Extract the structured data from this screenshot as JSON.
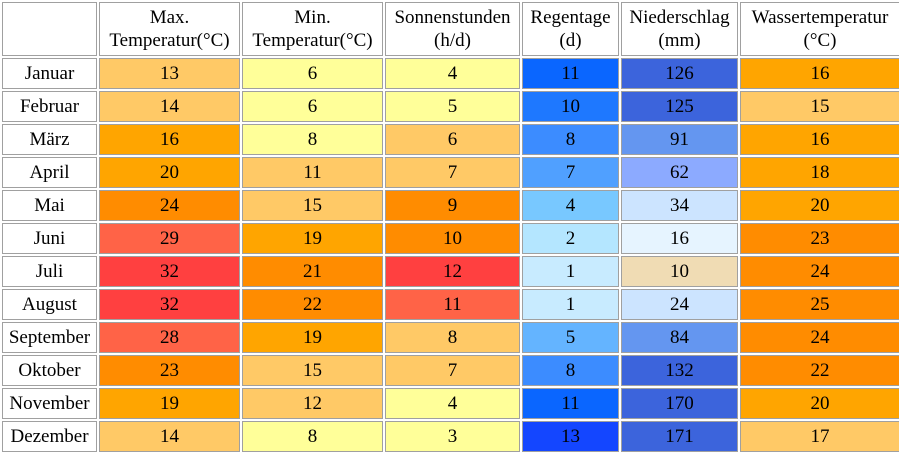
{
  "headers": [
    {
      "line1": "Max.",
      "line2": "Temperatur(°C)"
    },
    {
      "line1": "Min.",
      "line2": "Temperatur(°C)"
    },
    {
      "line1": "Sonnenstunden",
      "line2": "(h/d)"
    },
    {
      "line1": "Regentage",
      "line2": "(d)"
    },
    {
      "line1": "Niederschlag",
      "line2": "(mm)"
    },
    {
      "line1": "Wassertemperatur",
      "line2": "(°C)"
    }
  ],
  "rows": [
    {
      "month": "Januar",
      "values": [
        "13",
        "6",
        "4",
        "11",
        "126",
        "16"
      ]
    },
    {
      "month": "Februar",
      "values": [
        "14",
        "6",
        "5",
        "10",
        "125",
        "15"
      ]
    },
    {
      "month": "März",
      "values": [
        "16",
        "8",
        "6",
        "8",
        "91",
        "16"
      ]
    },
    {
      "month": "April",
      "values": [
        "20",
        "11",
        "7",
        "7",
        "62",
        "18"
      ]
    },
    {
      "month": "Mai",
      "values": [
        "24",
        "15",
        "9",
        "4",
        "34",
        "20"
      ]
    },
    {
      "month": "Juni",
      "values": [
        "29",
        "19",
        "10",
        "2",
        "16",
        "23"
      ]
    },
    {
      "month": "Juli",
      "values": [
        "32",
        "21",
        "12",
        "1",
        "10",
        "24"
      ]
    },
    {
      "month": "August",
      "values": [
        "32",
        "22",
        "11",
        "1",
        "24",
        "25"
      ]
    },
    {
      "month": "September",
      "values": [
        "28",
        "19",
        "8",
        "5",
        "84",
        "24"
      ]
    },
    {
      "month": "Oktober",
      "values": [
        "23",
        "15",
        "7",
        "8",
        "132",
        "22"
      ]
    },
    {
      "month": "November",
      "values": [
        "19",
        "12",
        "4",
        "11",
        "170",
        "20"
      ]
    },
    {
      "month": "Dezember",
      "values": [
        "14",
        "8",
        "3",
        "13",
        "171",
        "17"
      ]
    }
  ],
  "colors": [
    [
      "#ffc966",
      "#ffff99",
      "#ffff99",
      "#0a66ff",
      "#3c64dc",
      "#ffa500"
    ],
    [
      "#ffc966",
      "#ffff99",
      "#ffff99",
      "#1e78ff",
      "#3c64dc",
      "#ffc966"
    ],
    [
      "#ffa500",
      "#ffff99",
      "#ffc966",
      "#3c8cff",
      "#6496f0",
      "#ffa500"
    ],
    [
      "#ffa500",
      "#ffc966",
      "#ffc966",
      "#50a0ff",
      "#8caaff",
      "#ffa500"
    ],
    [
      "#ff8c00",
      "#ffc966",
      "#ff8c00",
      "#78c8ff",
      "#cce4ff",
      "#ffa500"
    ],
    [
      "#ff6347",
      "#ffa500",
      "#ff8c00",
      "#b4e6ff",
      "#e6f4ff",
      "#ff8c00"
    ],
    [
      "#ff4040",
      "#ff8c00",
      "#ff4040",
      "#c8ebff",
      "#f0dcb4",
      "#ff8c00"
    ],
    [
      "#ff4040",
      "#ff8c00",
      "#ff6347",
      "#c8ebff",
      "#cce4ff",
      "#ff8c00"
    ],
    [
      "#ff6347",
      "#ffa500",
      "#ffc966",
      "#64b4ff",
      "#6496f0",
      "#ff8c00"
    ],
    [
      "#ff8c00",
      "#ffc966",
      "#ffc966",
      "#3c8cff",
      "#3c64dc",
      "#ff8c00"
    ],
    [
      "#ffa500",
      "#ffc966",
      "#ffff99",
      "#0a66ff",
      "#3c64dc",
      "#ffa500"
    ],
    [
      "#ffc966",
      "#ffff99",
      "#ffff99",
      "#1446ff",
      "#3c64dc",
      "#ffc966"
    ]
  ]
}
